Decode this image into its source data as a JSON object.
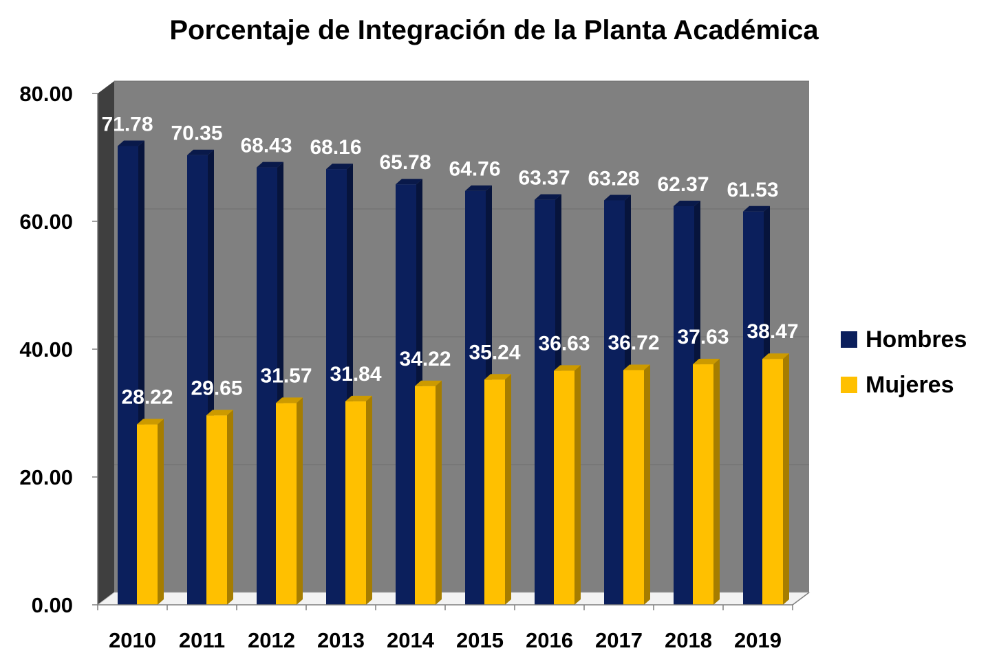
{
  "chart_data": {
    "type": "bar",
    "title": "Porcentaje de Integración de la Planta Académica",
    "categories": [
      "2010",
      "2011",
      "2012",
      "2013",
      "2014",
      "2015",
      "2016",
      "2017",
      "2018",
      "2019"
    ],
    "series": [
      {
        "name": "Hombres",
        "color": "#0B1F5C",
        "values": [
          71.78,
          70.35,
          68.43,
          68.16,
          65.78,
          64.76,
          63.37,
          63.28,
          62.37,
          61.53
        ],
        "labels": [
          "71.78",
          "70.35",
          "68.43",
          "68.16",
          "65.78",
          "64.76",
          "63.37",
          "63.28",
          "62.37",
          "61.53"
        ]
      },
      {
        "name": "Mujeres",
        "color": "#FFC000",
        "values": [
          28.22,
          29.65,
          31.57,
          31.84,
          34.22,
          35.24,
          36.63,
          36.72,
          37.63,
          38.47
        ],
        "labels": [
          "28.22",
          "29.65",
          "31.57",
          "31.84",
          "34.22",
          "35.24",
          "36.63",
          "36.72",
          "37.63",
          "38.47"
        ]
      }
    ],
    "yticks": [
      0,
      20,
      40,
      60,
      80
    ],
    "ytick_labels": [
      "0.00",
      "20.00",
      "40.00",
      "60.00",
      "80.00"
    ],
    "ylim": [
      0,
      80
    ],
    "xlabel": "",
    "ylabel": "",
    "grid": true,
    "legend_position": "right",
    "plot_background": "#808080"
  }
}
